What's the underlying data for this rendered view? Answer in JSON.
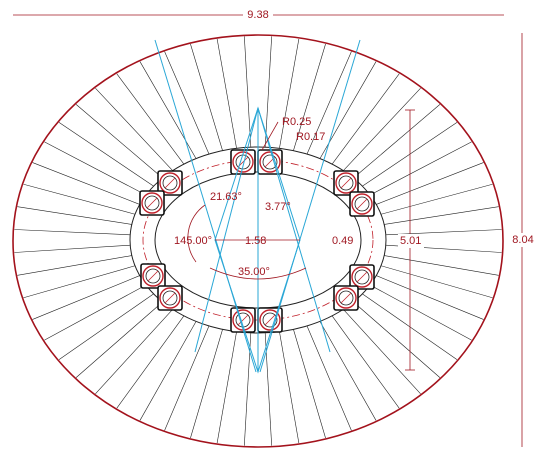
{
  "dimensions": {
    "overall_width": "9.38",
    "overall_height": "8.04",
    "outer_radius": "R0.25",
    "inner_radius": "R0.17",
    "angle_upper": "21.63°",
    "angle_small": "3.77°",
    "angle_left": "145.00°",
    "center_span": "1.58",
    "offset": "0.49",
    "inner_height": "5.01",
    "angle_lower": "35.00°"
  }
}
